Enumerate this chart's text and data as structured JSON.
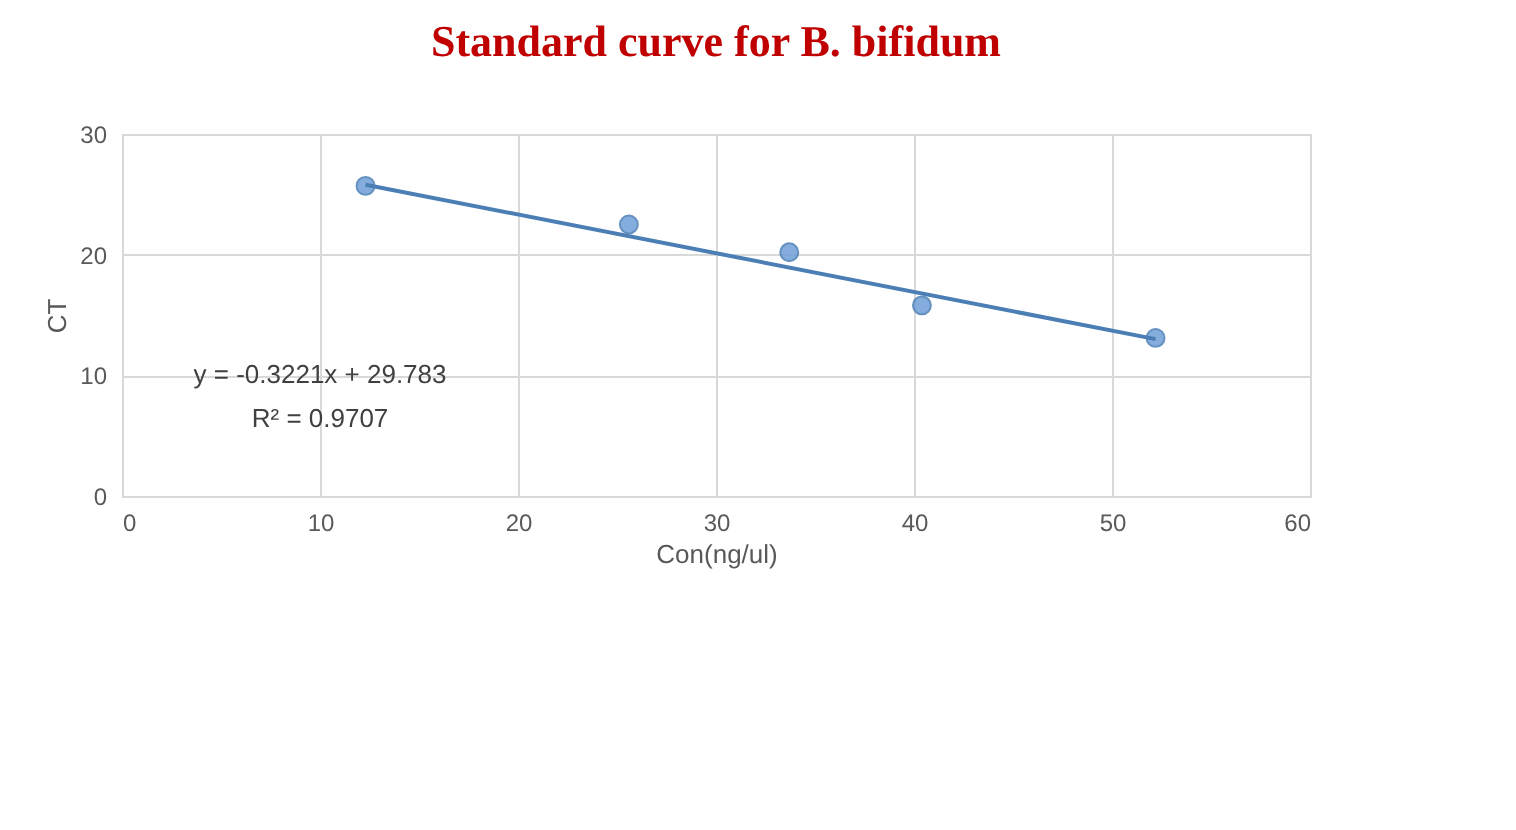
{
  "chart_data": {
    "type": "scatter",
    "title": "Standard curve for B. bifidum",
    "xlabel": "Con(ng/ul)",
    "ylabel": "CT",
    "x": [
      12.3,
      25.6,
      33.7,
      40.4,
      52.2
    ],
    "series": [
      {
        "color": "#6f9fd8",
        "values": [
          25.7,
          22.5,
          20.2,
          15.8,
          13.1
        ]
      },
      {
        "type": "line",
        "marker": "none",
        "color": "#4a7eb5",
        "x": [
          12.3,
          52.2
        ],
        "values": [
          25.8,
          13.0
        ]
      }
    ],
    "annotations": [
      "y = -0.3221x + 29.783",
      "R² = 0.9707"
    ],
    "xlim": [
      0,
      60
    ],
    "xticks": [
      0,
      10,
      20,
      30,
      40,
      50,
      60
    ],
    "ylim": [
      0,
      30
    ],
    "yticks": [
      0,
      10,
      20,
      30
    ],
    "grid": true,
    "marker": "circle"
  }
}
